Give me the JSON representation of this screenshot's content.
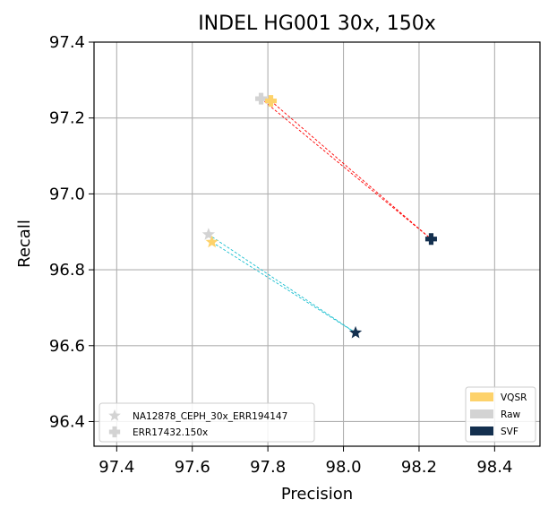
{
  "chart_data": {
    "type": "scatter",
    "title": "INDEL HG001 30x, 150x",
    "xlabel": "Precision",
    "ylabel": "Recall",
    "xlim": [
      97.34,
      98.52
    ],
    "ylim": [
      96.335,
      97.4
    ],
    "xticks": [
      "97.4",
      "97.6",
      "97.8",
      "98.0",
      "98.2",
      "98.4"
    ],
    "yticks": [
      "96.4",
      "96.6",
      "96.8",
      "97.0",
      "97.2",
      "97.4"
    ],
    "grid": true,
    "colors": {
      "VQSR": "#fdd26b",
      "Raw": "#d3d3d3",
      "SVF": "#14304f"
    },
    "series": [
      {
        "name": "NA12878_CEPH_30x_ERR194147",
        "marker": "star",
        "line_color": "#17becf",
        "points": [
          {
            "method": "Raw",
            "x": 97.643,
            "y": 96.893
          },
          {
            "method": "VQSR",
            "x": 97.652,
            "y": 96.873
          },
          {
            "method": "SVF",
            "x": 98.032,
            "y": 96.634
          }
        ]
      },
      {
        "name": "ERR17432.150x",
        "marker": "plus",
        "line_color": "#ff0000",
        "points": [
          {
            "method": "Raw",
            "x": 97.782,
            "y": 97.251
          },
          {
            "method": "VQSR",
            "x": 97.808,
            "y": 97.245
          },
          {
            "method": "SVF",
            "x": 98.232,
            "y": 96.881
          }
        ]
      }
    ],
    "legend_series": {
      "placement": "lower-left",
      "entries": [
        "NA12878_CEPH_30x_ERR194147",
        "ERR17432.150x"
      ]
    },
    "legend_methods": {
      "placement": "lower-right",
      "entries": [
        "VQSR",
        "Raw",
        "SVF"
      ]
    }
  }
}
